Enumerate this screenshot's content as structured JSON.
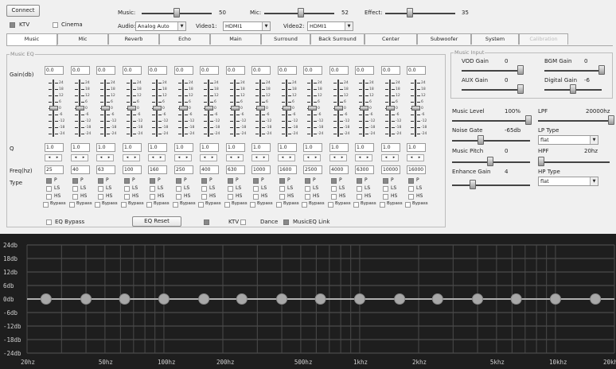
{
  "header": {
    "connect_label": "Connect",
    "ktv_label": "KTV",
    "cinema_label": "Cinema",
    "music_label": "Music:",
    "music_value": "50",
    "mic_label": "Mic:",
    "mic_value": "52",
    "effect_label": "Effect:",
    "effect_value": "35",
    "audio_label": "Audio:",
    "audio_value": "Analog Auto",
    "video1_label": "Video1:",
    "video1_value": "HDMI1",
    "video2_label": "Video2:",
    "video2_value": "HDMI1",
    "music_level": 0.5,
    "mic_level": 0.52,
    "effect_level": 0.35
  },
  "tabs": [
    "Music",
    "Mic",
    "Reverb",
    "Echo",
    "Main",
    "Surround",
    "Back Surround",
    "Center",
    "Subwoofer",
    "System",
    "Calibration"
  ],
  "eq": {
    "group_title": "Music EQ",
    "gain_label": "Gain(db)",
    "q_label": "Q",
    "freq_label": "Freq(hz)",
    "type_label": "Type",
    "scale": [
      "24",
      "18",
      "12",
      "6",
      "0",
      "-6",
      "-12",
      "-18",
      "-24"
    ],
    "bands": [
      {
        "gain": "0.0",
        "q": "1.0",
        "freq": "25"
      },
      {
        "gain": "0.0",
        "q": "1.0",
        "freq": "40"
      },
      {
        "gain": "0.0",
        "q": "1.0",
        "freq": "63"
      },
      {
        "gain": "0.0",
        "q": "1.0",
        "freq": "100"
      },
      {
        "gain": "0.0",
        "q": "1.0",
        "freq": "160"
      },
      {
        "gain": "0.0",
        "q": "1.0",
        "freq": "250"
      },
      {
        "gain": "0.0",
        "q": "1.0",
        "freq": "400"
      },
      {
        "gain": "0.0",
        "q": "1.0",
        "freq": "630"
      },
      {
        "gain": "0.0",
        "q": "1.0",
        "freq": "1000"
      },
      {
        "gain": "0.0",
        "q": "1.0",
        "freq": "1600"
      },
      {
        "gain": "0.0",
        "q": "1.0",
        "freq": "2500"
      },
      {
        "gain": "0.0",
        "q": "1.0",
        "freq": "4000"
      },
      {
        "gain": "0.0",
        "q": "1.0",
        "freq": "6300"
      },
      {
        "gain": "0.0",
        "q": "1.0",
        "freq": "10000"
      },
      {
        "gain": "0.0",
        "q": "1.0",
        "freq": "16000"
      }
    ],
    "type_p": "P",
    "type_ls": "LS",
    "type_hs": "HS",
    "bypass": "Bypass",
    "eq_bypass_label": "EQ Bypass",
    "eq_reset_label": "EQ Reset",
    "ktv_label": "KTV",
    "dance_label": "Dance",
    "music_eq_link_label": "MusicEQ Link"
  },
  "music_input": {
    "group_title": "Music Input",
    "vod_gain_label": "VOD Gain",
    "vod_gain_value": "0",
    "bgm_gain_label": "BGM Gain",
    "bgm_gain_value": "0",
    "aux_gain_label": "AUX Gain",
    "aux_gain_value": "0",
    "digital_gain_label": "Digital Gain",
    "digital_gain_value": "-6"
  },
  "controls": {
    "music_level_label": "Music Level",
    "music_level_value": "100%",
    "lpf_label": "LPF",
    "lpf_value": "20000hz",
    "noise_gate_label": "Noise Gate",
    "noise_gate_value": "-65db",
    "lp_type_label": "LP Type",
    "lp_type_value": "flat",
    "music_pitch_label": "Music Pitch",
    "music_pitch_value": "0",
    "hpf_label": "HPF",
    "hpf_value": "20hz",
    "enhance_gain_label": "Enhance Gain",
    "enhance_gain_value": "4",
    "hp_type_label": "HP Type",
    "hp_type_value": "flat"
  },
  "graph": {
    "y_labels": [
      "24db",
      "18db",
      "12db",
      "6db",
      "0db",
      "-6db",
      "-12db",
      "-18db",
      "-24db"
    ],
    "x_labels": [
      "20hz",
      "50hz",
      "100hz",
      "200hz",
      "500hz",
      "1khz",
      "2khz",
      "5khz",
      "10khz",
      "20khz"
    ],
    "background": "#1e1e1e",
    "curve_color": "#b0b0b0"
  }
}
